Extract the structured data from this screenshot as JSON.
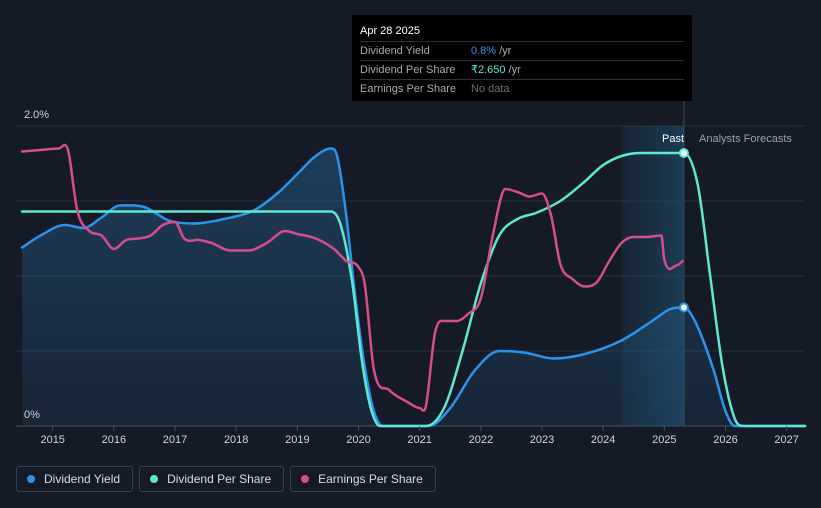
{
  "tooltip": {
    "date": "Apr 28 2025",
    "rows": [
      {
        "label": "Dividend Yield",
        "value": "0.8%",
        "unit": "/yr"
      },
      {
        "label": "Dividend Per Share",
        "value": "₹2.650",
        "unit": "/yr"
      },
      {
        "label": "Earnings Per Share",
        "value": "No data",
        "unit": ""
      }
    ]
  },
  "markers": {
    "past": "Past",
    "forecast": "Analysts Forecasts"
  },
  "legend": [
    {
      "label": "Dividend Yield",
      "color": "#2a94ec"
    },
    {
      "label": "Dividend Per Share",
      "color": "#5ee8cf"
    },
    {
      "label": "Earnings Per Share",
      "color": "#d64d8a"
    }
  ],
  "chart_data": {
    "type": "line",
    "x_ticks": [
      "2015",
      "2016",
      "2017",
      "2018",
      "2019",
      "2020",
      "2021",
      "2022",
      "2023",
      "2024",
      "2025",
      "2026",
      "2027"
    ],
    "y_ticks": [
      "0%",
      "2.0%"
    ],
    "xlim": [
      2014.4,
      2027.3
    ],
    "ylim": [
      0,
      2.0
    ],
    "past_cutoff": 2025.32,
    "forecast_band_start": 2024.3,
    "series": [
      {
        "name": "Dividend Yield",
        "color": "#2a94ec",
        "unit": "%",
        "fill": true,
        "points": [
          [
            2014.5,
            1.19
          ],
          [
            2014.8,
            1.27
          ],
          [
            2015.2,
            1.34
          ],
          [
            2015.5,
            1.32
          ],
          [
            2015.8,
            1.39
          ],
          [
            2016.1,
            1.47
          ],
          [
            2016.5,
            1.46
          ],
          [
            2016.9,
            1.37
          ],
          [
            2017.3,
            1.35
          ],
          [
            2017.8,
            1.38
          ],
          [
            2018.3,
            1.44
          ],
          [
            2018.7,
            1.56
          ],
          [
            2019.0,
            1.68
          ],
          [
            2019.3,
            1.8
          ],
          [
            2019.55,
            1.85
          ],
          [
            2019.65,
            1.8
          ],
          [
            2019.8,
            1.4
          ],
          [
            2019.95,
            0.85
          ],
          [
            2020.1,
            0.4
          ],
          [
            2020.25,
            0.1
          ],
          [
            2020.4,
            0.0
          ],
          [
            2021.15,
            0.0
          ],
          [
            2021.5,
            0.12
          ],
          [
            2021.9,
            0.37
          ],
          [
            2022.3,
            0.5
          ],
          [
            2022.7,
            0.49
          ],
          [
            2023.2,
            0.45
          ],
          [
            2023.7,
            0.48
          ],
          [
            2024.3,
            0.57
          ],
          [
            2024.8,
            0.7
          ],
          [
            2025.1,
            0.78
          ],
          [
            2025.32,
            0.79
          ],
          [
            2025.5,
            0.7
          ],
          [
            2025.8,
            0.38
          ],
          [
            2026.0,
            0.1
          ],
          [
            2026.15,
            0.0
          ],
          [
            2027.3,
            0.0
          ]
        ]
      },
      {
        "name": "Dividend Per Share",
        "color": "#5ee8cf",
        "unit": "₹",
        "fill": false,
        "points": [
          [
            2014.5,
            1.43
          ],
          [
            2016.0,
            1.43
          ],
          [
            2017.5,
            1.43
          ],
          [
            2019.0,
            1.43
          ],
          [
            2019.55,
            1.43
          ],
          [
            2019.7,
            1.35
          ],
          [
            2019.9,
            0.95
          ],
          [
            2020.05,
            0.45
          ],
          [
            2020.2,
            0.12
          ],
          [
            2020.35,
            0.0
          ],
          [
            2021.1,
            0.0
          ],
          [
            2021.4,
            0.12
          ],
          [
            2021.7,
            0.5
          ],
          [
            2022.0,
            0.95
          ],
          [
            2022.3,
            1.27
          ],
          [
            2022.6,
            1.38
          ],
          [
            2022.9,
            1.42
          ],
          [
            2023.3,
            1.5
          ],
          [
            2023.7,
            1.63
          ],
          [
            2024.0,
            1.74
          ],
          [
            2024.3,
            1.8
          ],
          [
            2024.6,
            1.82
          ],
          [
            2025.32,
            1.82
          ],
          [
            2025.55,
            1.6
          ],
          [
            2025.75,
            1.0
          ],
          [
            2025.95,
            0.4
          ],
          [
            2026.15,
            0.05
          ],
          [
            2026.3,
            0.0
          ],
          [
            2027.3,
            0.0
          ]
        ]
      },
      {
        "name": "Earnings Per Share",
        "color": "#d64d8a",
        "unit": "₹",
        "fill": false,
        "points": [
          [
            2014.5,
            1.83
          ],
          [
            2014.8,
            1.84
          ],
          [
            2015.1,
            1.85
          ],
          [
            2015.25,
            1.84
          ],
          [
            2015.4,
            1.44
          ],
          [
            2015.6,
            1.3
          ],
          [
            2015.8,
            1.27
          ],
          [
            2016.0,
            1.18
          ],
          [
            2016.2,
            1.24
          ],
          [
            2016.4,
            1.25
          ],
          [
            2016.6,
            1.27
          ],
          [
            2016.8,
            1.34
          ],
          [
            2017.0,
            1.36
          ],
          [
            2017.15,
            1.25
          ],
          [
            2017.4,
            1.24
          ],
          [
            2017.6,
            1.22
          ],
          [
            2017.9,
            1.17
          ],
          [
            2018.2,
            1.17
          ],
          [
            2018.5,
            1.22
          ],
          [
            2018.8,
            1.3
          ],
          [
            2019.0,
            1.28
          ],
          [
            2019.3,
            1.25
          ],
          [
            2019.6,
            1.18
          ],
          [
            2019.8,
            1.1
          ],
          [
            2020.0,
            1.06
          ],
          [
            2020.1,
            0.95
          ],
          [
            2020.25,
            0.38
          ],
          [
            2020.5,
            0.24
          ],
          [
            2020.8,
            0.16
          ],
          [
            2021.0,
            0.12
          ],
          [
            2021.1,
            0.13
          ],
          [
            2021.25,
            0.62
          ],
          [
            2021.4,
            0.7
          ],
          [
            2021.6,
            0.7
          ],
          [
            2021.8,
            0.75
          ],
          [
            2022.0,
            0.85
          ],
          [
            2022.2,
            1.28
          ],
          [
            2022.4,
            1.58
          ],
          [
            2022.6,
            1.56
          ],
          [
            2022.8,
            1.53
          ],
          [
            2023.0,
            1.55
          ],
          [
            2023.15,
            1.4
          ],
          [
            2023.3,
            1.08
          ],
          [
            2023.5,
            0.98
          ],
          [
            2023.7,
            0.93
          ],
          [
            2023.9,
            0.96
          ],
          [
            2024.1,
            1.1
          ],
          [
            2024.3,
            1.22
          ],
          [
            2024.5,
            1.26
          ],
          [
            2024.7,
            1.26
          ],
          [
            2024.95,
            1.27
          ],
          [
            2025.0,
            1.11
          ],
          [
            2025.2,
            1.07
          ],
          [
            2025.3,
            1.1
          ]
        ]
      }
    ],
    "highlight_points": [
      {
        "series": "Dividend Per Share",
        "x": 2025.32,
        "y": 1.82
      },
      {
        "series": "Dividend Yield",
        "x": 2025.32,
        "y": 0.79
      }
    ]
  }
}
